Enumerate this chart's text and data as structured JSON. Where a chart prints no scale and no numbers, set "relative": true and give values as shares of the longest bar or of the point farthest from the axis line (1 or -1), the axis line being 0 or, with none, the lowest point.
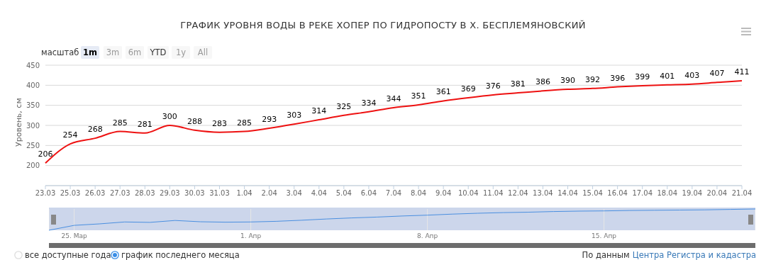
{
  "chart_data": [
    {
      "type": "line",
      "title": "ГРАФИК УРОВНЯ ВОДЫ В РЕКЕ ХОПЕР ПО ГИДРОПОСТУ В Х. БЕСПЛЕМЯНОВСКИЙ",
      "ylabel": "Уровень, см",
      "categories": [
        "23.03",
        "25.03",
        "26.03",
        "27.03",
        "28.03",
        "29.03",
        "30.03",
        "31.03",
        "1.04",
        "2.04",
        "3.04",
        "4.04",
        "5.04",
        "6.04",
        "7.04",
        "8.04",
        "9.04",
        "10.04",
        "11.04",
        "12.04",
        "13.04",
        "14.04",
        "15.04",
        "16.04",
        "17.04",
        "18.04",
        "19.04",
        "20.04",
        "21.04"
      ],
      "series": [
        {
          "color": "#ee1111",
          "values": [
            206,
            254,
            268,
            285,
            281,
            300,
            288,
            283,
            285,
            293,
            303,
            314,
            325,
            334,
            344,
            351,
            361,
            369,
            376,
            381,
            386,
            390,
            392,
            396,
            399,
            401,
            403,
            407,
            411
          ]
        }
      ],
      "ylim": [
        150,
        450
      ],
      "yticks": [
        200,
        250,
        300,
        350,
        400,
        450
      ],
      "grid": "y",
      "data_labels": true,
      "legend": false,
      "marker": "none",
      "annotations": [
        "масштаб",
        "1m",
        "3m",
        "6m",
        "YTD",
        "1y",
        "All",
        "все доступные года",
        "график последнего месяца",
        "По данным",
        "Центра Регистра и кадастра"
      ]
    },
    {
      "type": "line",
      "relative": true,
      "categories": [
        null,
        "25. Мар",
        null,
        null,
        null,
        null,
        null,
        null,
        "1. Апр",
        null,
        null,
        null,
        null,
        null,
        null,
        "8. Апр",
        null,
        null,
        null,
        null,
        null,
        null,
        "15. Апр",
        null,
        null,
        null,
        null,
        null,
        null
      ],
      "series": [
        {
          "color": "#4a8fe0",
          "values": [
            0,
            0.23,
            0.3,
            0.39,
            0.37,
            0.46,
            0.4,
            0.38,
            0.39,
            0.42,
            0.47,
            0.53,
            0.58,
            0.62,
            0.67,
            0.71,
            0.76,
            0.8,
            0.83,
            0.85,
            0.88,
            0.9,
            0.91,
            0.93,
            0.94,
            0.95,
            0.96,
            0.98,
            1
          ]
        }
      ],
      "tick_labels": "x",
      "grid": "x"
    }
  ]
}
